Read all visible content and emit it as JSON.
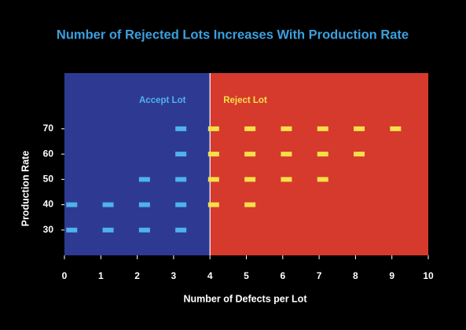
{
  "chart_data": {
    "type": "scatter",
    "title": "Number of Rejected Lots Increases With Production Rate",
    "x_label": "Number of Defects per Lot",
    "y_label": "Production Rate",
    "xlim": [
      0,
      10
    ],
    "ylim": [
      20,
      92
    ],
    "xticks": [
      0,
      1,
      2,
      3,
      4,
      5,
      6,
      7,
      8,
      9,
      10
    ],
    "yticks": [
      30,
      40,
      50,
      60,
      70
    ],
    "regions": [
      {
        "name": "Accept Lot",
        "from": 0,
        "to": 4,
        "color": "#2e3a92",
        "label_color": "#4fb3e8"
      },
      {
        "name": "Reject Lot",
        "from": 4,
        "to": 10,
        "color": "#d63a2c",
        "label_color": "#f5e04a"
      }
    ],
    "series": [
      {
        "color": "#4fb3e8",
        "x": [
          0.2,
          1.2,
          2.2,
          3.2,
          0.2,
          1.2,
          2.2,
          3.2,
          2.2,
          3.2,
          3.2,
          3.2
        ],
        "values": [
          30,
          30,
          30,
          30,
          40,
          40,
          40,
          40,
          50,
          50,
          60,
          70
        ]
      },
      {
        "color": "#f5e04a",
        "x": [
          4.1,
          5.1,
          4.1,
          5.1,
          6.1,
          7.1,
          4.1,
          5.1,
          6.1,
          7.1,
          8.1,
          4.1,
          5.1,
          6.1,
          7.1,
          8.1,
          9.1
        ],
        "values": [
          40,
          40,
          50,
          50,
          50,
          50,
          60,
          60,
          60,
          60,
          60,
          70,
          70,
          70,
          70,
          70,
          70
        ]
      }
    ]
  }
}
